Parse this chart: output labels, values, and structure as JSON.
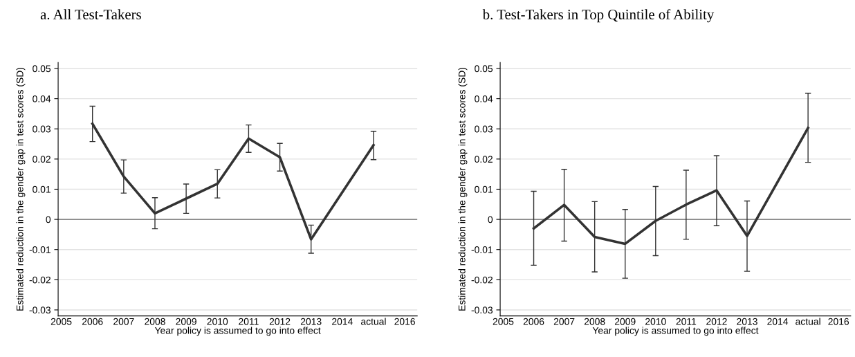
{
  "chart_data": [
    {
      "type": "line",
      "title": "a. All Test-Takers",
      "xlabel": "Year policy is assumed to go into effect",
      "ylabel": "Estimated reduction in the gender gap in test scores (SD)",
      "x": [
        2006,
        2007,
        2008,
        2009,
        2010,
        2011,
        2012,
        2013,
        2015
      ],
      "series": [
        {
          "color": "#333333",
          "values": [
            0.0317,
            0.0142,
            0.002,
            0.0069,
            0.0118,
            0.0268,
            0.0206,
            -0.0066,
            0.0246
          ],
          "errors": [
            [
              0.0258,
              0.0375
            ],
            [
              0.0087,
              0.0197
            ],
            [
              -0.0031,
              0.0072
            ],
            [
              0.002,
              0.0117
            ],
            [
              0.0071,
              0.0165
            ],
            [
              0.0222,
              0.0313
            ],
            [
              0.016,
              0.0252
            ],
            [
              -0.0112,
              -0.0019
            ],
            [
              0.0198,
              0.0292
            ]
          ]
        }
      ],
      "xlim": [
        2004.9,
        2016.4
      ],
      "xticks": [
        2005,
        2006,
        2007,
        2008,
        2009,
        2010,
        2011,
        2012,
        2013,
        2014,
        {
          "value": 2015,
          "label": "actual"
        },
        2016
      ],
      "ylim": [
        -0.032,
        0.052
      ],
      "yticks": [
        -0.03,
        -0.02,
        -0.01,
        0,
        0.01,
        0.02,
        0.03,
        0.04,
        0.05
      ],
      "ref_lines": [
        {
          "axis": "y",
          "value": 0,
          "color": "#666666"
        }
      ],
      "grid": "y",
      "marker": "none",
      "line_style": "solid",
      "legend": false
    },
    {
      "type": "line",
      "title": "b. Test-Takers in Top Quintile of Ability",
      "xlabel": "Year policy is assumed to go into effect",
      "ylabel": "Estimated reduction in the gender gap in test scores (SD)",
      "x": [
        2006,
        2007,
        2008,
        2009,
        2010,
        2011,
        2012,
        2013,
        2015
      ],
      "series": [
        {
          "color": "#333333",
          "values": [
            -0.003,
            0.0048,
            -0.0058,
            -0.0081,
            -0.0005,
            0.0049,
            0.0096,
            -0.0055,
            0.0303
          ],
          "errors": [
            [
              -0.0152,
              0.0093
            ],
            [
              -0.0072,
              0.0166
            ],
            [
              -0.0174,
              0.0059
            ],
            [
              -0.0195,
              0.0033
            ],
            [
              -0.012,
              0.0109
            ],
            [
              -0.0066,
              0.0163
            ],
            [
              -0.0021,
              0.0211
            ],
            [
              -0.0172,
              0.0061
            ],
            [
              0.0189,
              0.0418
            ]
          ]
        }
      ],
      "xlim": [
        2004.9,
        2016.4
      ],
      "xticks": [
        2005,
        2006,
        2007,
        2008,
        2009,
        2010,
        2011,
        2012,
        2013,
        2014,
        {
          "value": 2015,
          "label": "actual"
        },
        2016
      ],
      "ylim": [
        -0.032,
        0.052
      ],
      "yticks": [
        -0.03,
        -0.02,
        -0.01,
        0,
        0.01,
        0.02,
        0.03,
        0.04,
        0.05
      ],
      "ref_lines": [
        {
          "axis": "y",
          "value": 0,
          "color": "#666666"
        }
      ],
      "grid": "y",
      "marker": "none",
      "line_style": "solid",
      "legend": false
    }
  ]
}
